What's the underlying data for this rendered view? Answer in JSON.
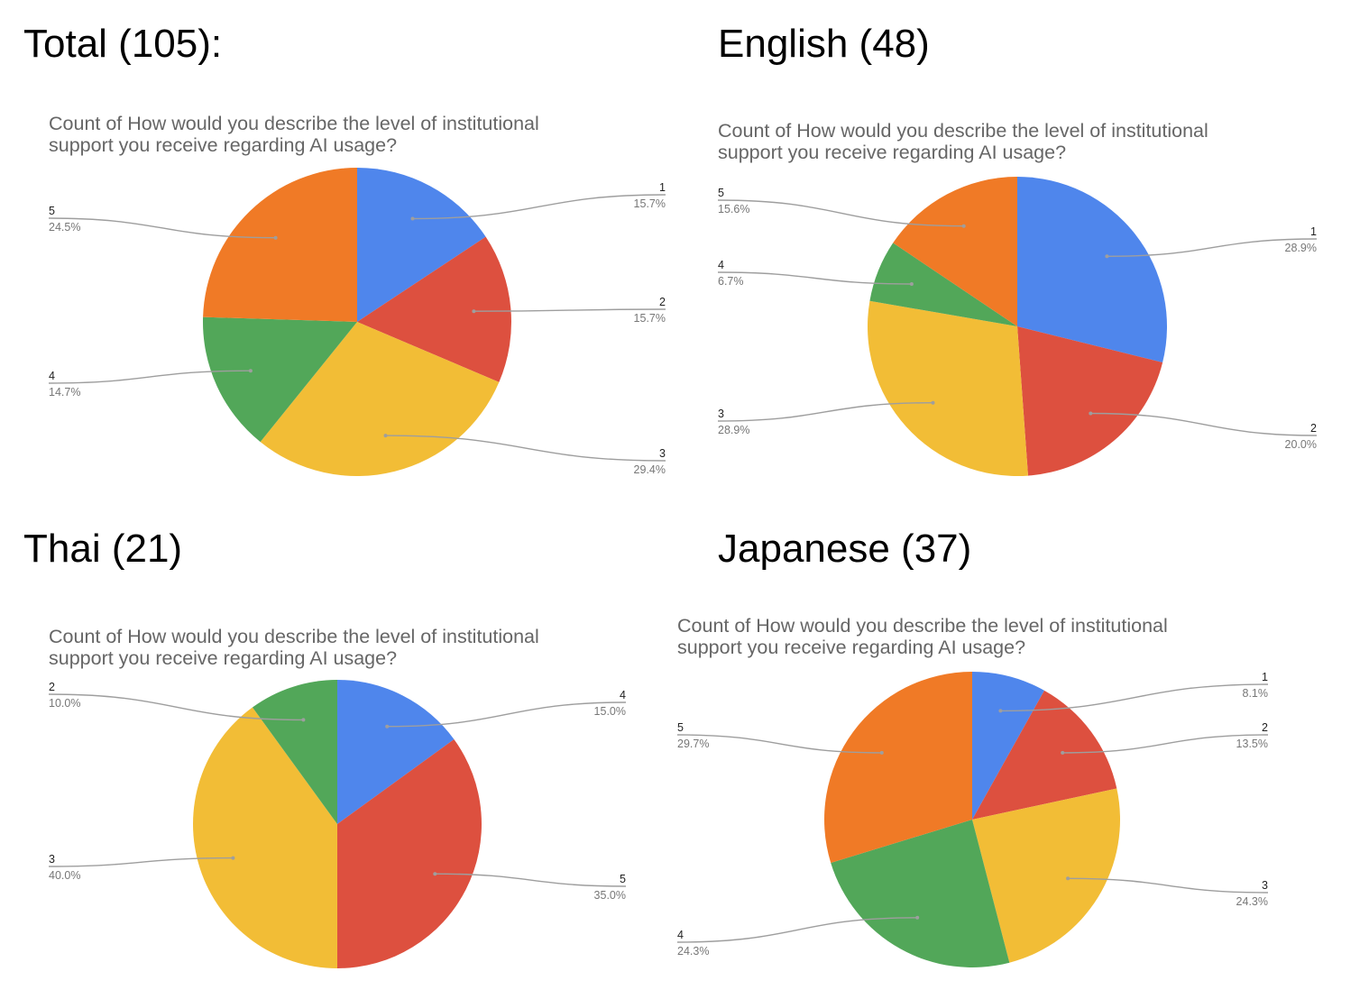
{
  "colors": {
    "blue": "#4f86ec",
    "red": "#dd503f",
    "yellow": "#f2bd36",
    "green": "#52a759",
    "orange": "#f07a26",
    "leader": "#9e9e9e"
  },
  "chart_data": [
    {
      "type": "pie",
      "heading": "Total (105):",
      "title": "Count of How would you describe the level of institutional\nsupport you receive regarding AI usage?",
      "legend": "none",
      "slices": [
        {
          "label": "1",
          "percent_label": "15.7%",
          "value": 15.7,
          "color": "#4f86ec"
        },
        {
          "label": "2",
          "percent_label": "15.7%",
          "value": 15.7,
          "color": "#dd503f"
        },
        {
          "label": "3",
          "percent_label": "29.4%",
          "value": 29.4,
          "color": "#f2bd36"
        },
        {
          "label": "4",
          "percent_label": "14.7%",
          "value": 14.7,
          "color": "#52a759"
        },
        {
          "label": "5",
          "percent_label": "24.5%",
          "value": 24.5,
          "color": "#f07a26"
        }
      ]
    },
    {
      "type": "pie",
      "heading": "English (48)",
      "title": "Count of How would you describe the level of institutional\nsupport you receive regarding AI usage?",
      "legend": "none",
      "slices": [
        {
          "label": "1",
          "percent_label": "28.9%",
          "value": 28.9,
          "color": "#4f86ec"
        },
        {
          "label": "2",
          "percent_label": "20.0%",
          "value": 20.0,
          "color": "#dd503f"
        },
        {
          "label": "3",
          "percent_label": "28.9%",
          "value": 28.9,
          "color": "#f2bd36"
        },
        {
          "label": "4",
          "percent_label": "6.7%",
          "value": 6.7,
          "color": "#52a759"
        },
        {
          "label": "5",
          "percent_label": "15.6%",
          "value": 15.6,
          "color": "#f07a26"
        }
      ]
    },
    {
      "type": "pie",
      "heading": "Thai (21)",
      "title": "Count of How would you describe the level of institutional\nsupport you receive regarding AI usage?",
      "legend": "none",
      "slices": [
        {
          "label": "4",
          "percent_label": "15.0%",
          "value": 15.0,
          "color": "#4f86ec"
        },
        {
          "label": "5",
          "percent_label": "35.0%",
          "value": 35.0,
          "color": "#dd503f"
        },
        {
          "label": "3",
          "percent_label": "40.0%",
          "value": 40.0,
          "color": "#f2bd36"
        },
        {
          "label": "2",
          "percent_label": "10.0%",
          "value": 10.0,
          "color": "#52a759"
        }
      ]
    },
    {
      "type": "pie",
      "heading": "Japanese (37)",
      "title": "Count of How would you describe the level of institutional\nsupport you receive regarding AI usage?",
      "legend": "none",
      "slices": [
        {
          "label": "1",
          "percent_label": "8.1%",
          "value": 8.1,
          "color": "#4f86ec"
        },
        {
          "label": "2",
          "percent_label": "13.5%",
          "value": 13.5,
          "color": "#dd503f"
        },
        {
          "label": "3",
          "percent_label": "24.3%",
          "value": 24.3,
          "color": "#f2bd36"
        },
        {
          "label": "4",
          "percent_label": "24.3%",
          "value": 24.3,
          "color": "#52a759"
        },
        {
          "label": "5",
          "percent_label": "29.7%",
          "value": 29.7,
          "color": "#f07a26"
        }
      ]
    }
  ]
}
